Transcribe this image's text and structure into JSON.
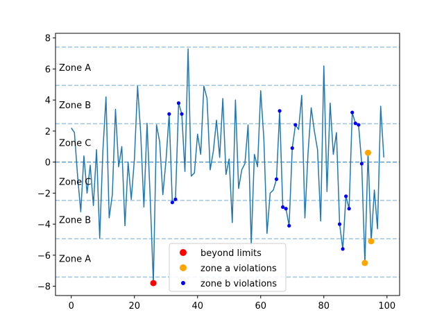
{
  "chart_data": {
    "type": "line",
    "title": "",
    "xlabel": "",
    "ylabel": "",
    "xlim": [
      -5,
      104
    ],
    "ylim": [
      -8.6,
      8.3
    ],
    "x_ticks": [
      0,
      20,
      40,
      60,
      80,
      100
    ],
    "y_ticks": [
      -8,
      -6,
      -4,
      -2,
      0,
      2,
      4,
      6,
      8
    ],
    "grid": false,
    "colors": {
      "series": "#1f77b4",
      "beyond": "#ff0000",
      "zone_a": "#ffa500",
      "zone_b": "#0000ff",
      "center_line": "#5f9ac4",
      "sigma_line": "#9ec5e0"
    },
    "center": 0.0,
    "sigma_lines": [
      2.47,
      -2.47,
      4.94,
      -4.94,
      7.41,
      -7.41
    ],
    "zone_labels": [
      {
        "text": "Zone A",
        "y": 6.1
      },
      {
        "text": "Zone B",
        "y": 3.7
      },
      {
        "text": "Zone C",
        "y": 1.25
      },
      {
        "text": "Zone C",
        "y": -1.25
      },
      {
        "text": "Zone B",
        "y": -3.7
      },
      {
        "text": "Zone A",
        "y": -6.2
      }
    ],
    "series": [
      {
        "values": [
          2.2,
          1.9,
          -0.9,
          -3.2,
          0.4,
          -2.0,
          -0.2,
          -2.8,
          0.8,
          -4.9,
          0.7,
          4.2,
          -3.6,
          -2.1,
          3.4,
          -0.3,
          1.0,
          -4.1,
          0.0,
          -2.4,
          0.2,
          4.9,
          1.8,
          -2.9,
          2.5,
          -2.3,
          -7.8,
          2.4,
          1.3,
          -2.1,
          0.1,
          3.1,
          -2.6,
          -2.4,
          3.8,
          3.1,
          -0.6,
          7.3,
          -0.9,
          -0.7,
          1.8,
          0.5,
          4.9,
          4.1,
          -0.5,
          0.7,
          2.7,
          0.3,
          4.1,
          -0.8,
          0.2,
          -3.9,
          4.0,
          -1.7,
          -0.5,
          -0.1,
          2.4,
          -5.3,
          0.5,
          -0.3,
          4.6,
          1.5,
          -4.6,
          -2.0,
          -1.8,
          -1.1,
          3.3,
          -2.9,
          -3.0,
          -4.1,
          0.9,
          2.4,
          2.1,
          4.3,
          -3.6,
          0.6,
          3.5,
          2.0,
          0.8,
          -3.8,
          6.2,
          -1.9,
          3.8,
          0.5,
          1.9,
          -4.0,
          -5.6,
          -2.2,
          -3.0,
          3.2,
          2.5,
          2.4,
          -0.1,
          -6.5,
          0.6,
          -5.1,
          -1.8,
          -4.3,
          3.6,
          0.3
        ]
      }
    ],
    "markers": {
      "beyond_limits": [
        [
          26,
          -7.8
        ]
      ],
      "zone_a_violations": [
        [
          93,
          -6.5
        ],
        [
          94,
          0.6
        ],
        [
          95,
          -5.1
        ]
      ],
      "zone_b_violations": [
        [
          31,
          3.1
        ],
        [
          32,
          -2.6
        ],
        [
          33,
          -2.4
        ],
        [
          34,
          3.8
        ],
        [
          35,
          3.1
        ],
        [
          65,
          -1.1
        ],
        [
          66,
          3.3
        ],
        [
          67,
          -2.9
        ],
        [
          68,
          -3.0
        ],
        [
          69,
          -4.1
        ],
        [
          70,
          0.9
        ],
        [
          71,
          2.4
        ],
        [
          85,
          -4.0
        ],
        [
          86,
          -5.6
        ],
        [
          87,
          -2.2
        ],
        [
          88,
          -3.0
        ],
        [
          89,
          3.2
        ],
        [
          90,
          2.5
        ],
        [
          91,
          2.4
        ],
        [
          92,
          -0.1
        ]
      ]
    },
    "legend": {
      "position": "lower-center",
      "entries": [
        {
          "label": "beyond limits",
          "marker": "beyond"
        },
        {
          "label": "zone a violations",
          "marker": "zone_a"
        },
        {
          "label": "zone b violations",
          "marker": "zone_b"
        }
      ]
    }
  }
}
